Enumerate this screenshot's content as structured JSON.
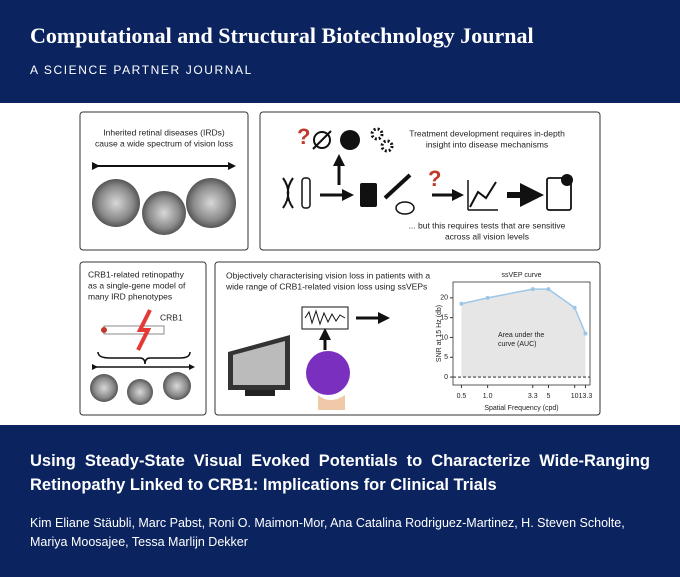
{
  "header": {
    "title": "Computational and Structural Biotechnology Journal",
    "subtitle": "A SCIENCE PARTNER JOURNAL"
  },
  "panels": [
    {
      "lines": [
        "Inherited retinal diseases (IRDs)",
        "cause a wide spectrum of vision loss"
      ]
    },
    {
      "lines": [
        "Treatment development requires in-depth",
        "insight into disease mechanisms"
      ],
      "lines2": [
        "... but this requires tests that are sensitive",
        "across all vision levels"
      ]
    },
    {
      "lines": [
        "CRB1-related retinopathy",
        "as a single-gene model of",
        "many IRD phenotypes"
      ],
      "gene": "CRB1"
    },
    {
      "lines": [
        "Objectively characterising vision loss in patients with a",
        "wide range of CRB1-related vision loss using ssVEPs"
      ]
    }
  ],
  "chart_data": {
    "type": "line",
    "title": "ssVEP curve",
    "x_label": "Spatial Frequency (cpd)",
    "y_label": "SNR at 15 Hz (db)",
    "x": [
      0.5,
      1,
      3.3,
      5,
      10,
      13.3
    ],
    "values": [
      18.5,
      20,
      22.2,
      22.2,
      17.5,
      11
    ],
    "color": "#9ec6e6",
    "area_color": "#e6e6e6",
    "xlog": true,
    "xlim": [
      0.4,
      15
    ],
    "ylim": [
      -2,
      24
    ],
    "xticks": [
      0.5,
      {
        "value": 1,
        "label": "1.0"
      },
      3.3,
      5,
      10,
      13.3
    ],
    "yticks": [
      0,
      5,
      10,
      15,
      20
    ],
    "hline": 0,
    "annotation": [
      "Area under the",
      "curve (AUC)"
    ]
  },
  "article": {
    "title": "Using Steady-State Visual Evoked Potentials to Characterize Wide-Ranging Retinopathy Linked to CRB1: Implications for Clinical Trials",
    "authors": "Kim Eliane Stäubli, Marc Pabst, Roni O. Maimon-Mor, Ana Catalina Rodriguez-Martinez, H. Steven Scholte, Mariya Moosajee, Tessa Marlijn Dekker"
  }
}
